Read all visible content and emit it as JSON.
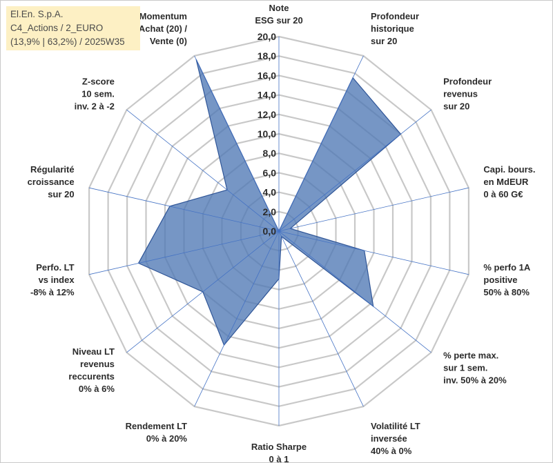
{
  "header": {
    "line1": "El.En. S.p.A.",
    "line2": "C4_Actions / 2_EURO",
    "line3": "(13,9% | 63,2%) / 2025W35"
  },
  "chart_data": {
    "type": "radar",
    "rlim": [
      0,
      20
    ],
    "rticks": [
      "0,0",
      "2,0",
      "4,0",
      "6,0",
      "8,0",
      "10,0",
      "12,0",
      "14,0",
      "16,0",
      "18,0",
      "20,0"
    ],
    "grid": true,
    "colors": {
      "fill": "#4f78b5",
      "fill_opacity": 0.78,
      "stroke": "#2f5597",
      "grid": "#c8c8c8",
      "spoke": "#4472c4"
    },
    "axes": [
      {
        "label": [
          "Note",
          "ESG sur 20"
        ]
      },
      {
        "label": [
          "Profondeur",
          "historique",
          "sur 20"
        ]
      },
      {
        "label": [
          "Profondeur",
          "revenus",
          "sur 20"
        ]
      },
      {
        "label": [
          "Capi. bours.",
          "en MdEUR",
          "0 à 60 G€"
        ]
      },
      {
        "label": [
          "% perfo 1A",
          "positive",
          "50% à 80%"
        ]
      },
      {
        "label": [
          "% perte max.",
          "sur 1 sem.",
          "inv. 50% à 20%"
        ]
      },
      {
        "label": [
          "Volatilité LT",
          "inversée",
          "40% à 0%"
        ]
      },
      {
        "label": [
          "Ratio Sharpe",
          "0 à 1"
        ]
      },
      {
        "label": [
          "Rendement LT",
          "0% à 20%"
        ]
      },
      {
        "label": [
          "Niveau LT",
          "revenus",
          "reccurents",
          "0% à 6%"
        ]
      },
      {
        "label": [
          "Perfo. LT",
          "vs index",
          "-8% à 12%"
        ]
      },
      {
        "label": [
          "Régularité",
          "croissance",
          "sur 20"
        ]
      },
      {
        "label": [
          "Z-score",
          "10 sem.",
          "inv. 2 à -2"
        ]
      },
      {
        "label": [
          "Momentum",
          "Achat (20) /",
          "Vente (0)"
        ]
      }
    ],
    "series": [
      {
        "values": [
          0,
          17.5,
          16.0,
          1.2,
          9.0,
          12.4,
          0.6,
          4.9,
          13.0,
          10.0,
          14.8,
          11.5,
          6.8,
          19.6
        ]
      }
    ]
  }
}
